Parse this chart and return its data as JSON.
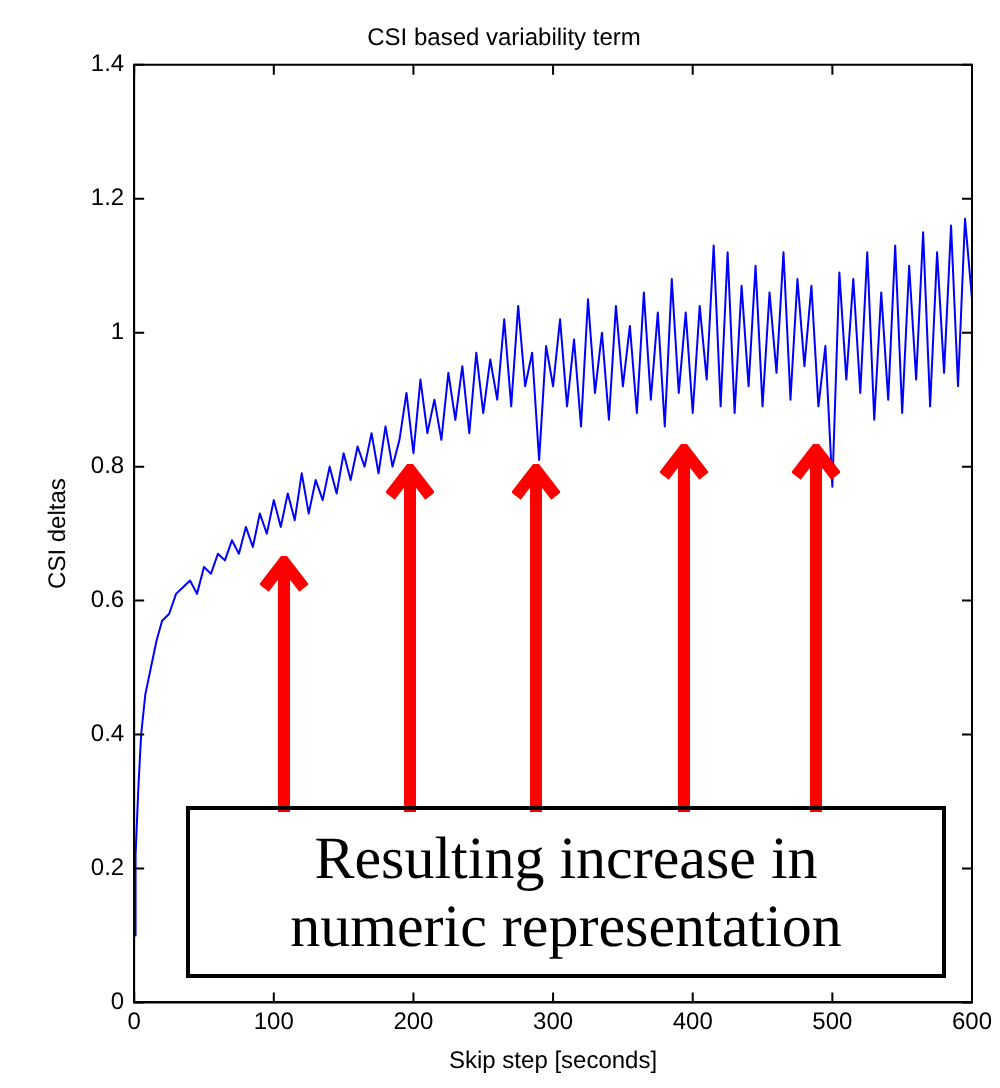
{
  "chart_data": {
    "type": "line",
    "title": "CSI based variability term",
    "xlabel": "Skip step [seconds]",
    "ylabel": "CSI deltas",
    "x": [
      0,
      1,
      3,
      5,
      8,
      12,
      16,
      20,
      25,
      30,
      35,
      40,
      45,
      50,
      55,
      60,
      65,
      70,
      75,
      80,
      85,
      90,
      95,
      100,
      105,
      110,
      115,
      120,
      125,
      130,
      135,
      140,
      145,
      150,
      155,
      160,
      165,
      170,
      175,
      180,
      185,
      190,
      195,
      200,
      205,
      210,
      215,
      220,
      225,
      230,
      235,
      240,
      245,
      250,
      255,
      260,
      265,
      270,
      275,
      280,
      285,
      290,
      295,
      300,
      305,
      310,
      315,
      320,
      325,
      330,
      335,
      340,
      345,
      350,
      355,
      360,
      365,
      370,
      375,
      380,
      385,
      390,
      395,
      400,
      405,
      410,
      415,
      420,
      425,
      430,
      435,
      440,
      445,
      450,
      455,
      460,
      465,
      470,
      475,
      480,
      485,
      490,
      495,
      500,
      505,
      510,
      515,
      520,
      525,
      530,
      535,
      540,
      545,
      550,
      555,
      560,
      565,
      570,
      575,
      580,
      585,
      590,
      595,
      600
    ],
    "series": [
      {
        "color": "#0000ff",
        "values": [
          0.1,
          0.22,
          0.32,
          0.4,
          0.46,
          0.5,
          0.54,
          0.57,
          0.58,
          0.61,
          0.62,
          0.63,
          0.61,
          0.65,
          0.64,
          0.67,
          0.66,
          0.69,
          0.67,
          0.71,
          0.68,
          0.73,
          0.7,
          0.75,
          0.71,
          0.76,
          0.72,
          0.79,
          0.73,
          0.78,
          0.75,
          0.8,
          0.76,
          0.82,
          0.78,
          0.83,
          0.8,
          0.85,
          0.79,
          0.86,
          0.8,
          0.84,
          0.91,
          0.82,
          0.93,
          0.85,
          0.9,
          0.84,
          0.94,
          0.87,
          0.95,
          0.85,
          0.97,
          0.88,
          0.96,
          0.9,
          1.02,
          0.89,
          1.04,
          0.92,
          0.97,
          0.81,
          0.98,
          0.92,
          1.02,
          0.89,
          0.99,
          0.86,
          1.05,
          0.91,
          1.0,
          0.87,
          1.04,
          0.92,
          1.01,
          0.88,
          1.06,
          0.9,
          1.03,
          0.86,
          1.08,
          0.91,
          1.03,
          0.88,
          1.04,
          0.93,
          1.13,
          0.89,
          1.12,
          0.88,
          1.07,
          0.92,
          1.1,
          0.89,
          1.06,
          0.94,
          1.12,
          0.9,
          1.08,
          0.95,
          1.07,
          0.89,
          0.98,
          0.77,
          1.09,
          0.93,
          1.08,
          0.91,
          1.12,
          0.87,
          1.06,
          0.9,
          1.13,
          0.88,
          1.1,
          0.93,
          1.15,
          0.89,
          1.12,
          0.94,
          1.16,
          0.92,
          1.17,
          1.05
        ]
      }
    ],
    "xlim": [
      0,
      600
    ],
    "xticks": [
      0,
      100,
      200,
      300,
      400,
      500,
      600
    ],
    "ylim": [
      0,
      1.4
    ],
    "yticks": [
      0,
      0.2,
      0.4,
      0.6,
      0.8,
      1,
      1.2,
      1.4
    ],
    "grid": false,
    "legend": false,
    "marker": "none",
    "line_style": "solid",
    "annotations": [
      "Resulting increase in\nnumeric representation"
    ]
  }
}
